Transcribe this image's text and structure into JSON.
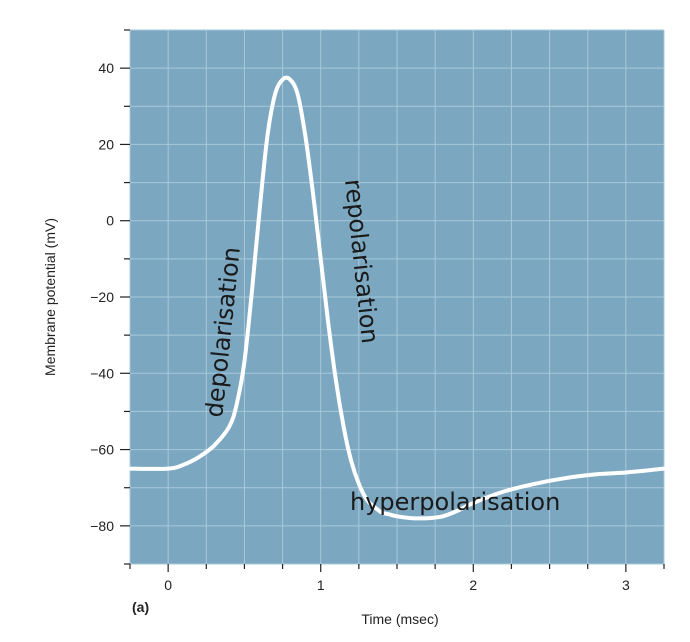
{
  "chart_data": {
    "type": "line",
    "title": "",
    "panel_label": "(a)",
    "xlabel": "Time (msec)",
    "ylabel": "Membrane potential (mV)",
    "xlim": [
      -0.25,
      3.25
    ],
    "ylim": [
      -90,
      50
    ],
    "xticks": [
      0,
      1,
      2,
      3
    ],
    "yticks": [
      40,
      20,
      0,
      -20,
      -40,
      -60,
      -80
    ],
    "grid": true,
    "colors": {
      "background": "#7ba7c1",
      "grid": "#a9c8da",
      "line": "#ffffff"
    },
    "series": [
      {
        "name": "",
        "x": [
          -0.25,
          0.0,
          0.1,
          0.2,
          0.3,
          0.4,
          0.45,
          0.5,
          0.55,
          0.6,
          0.65,
          0.7,
          0.75,
          0.8,
          0.85,
          0.9,
          0.95,
          1.0,
          1.05,
          1.1,
          1.15,
          1.2,
          1.25,
          1.3,
          1.35,
          1.4,
          1.45,
          1.5,
          1.6,
          1.7,
          1.8,
          1.9,
          2.0,
          2.2,
          2.4,
          2.6,
          2.8,
          3.0,
          3.25
        ],
        "y": [
          -65,
          -65,
          -64,
          -62,
          -59,
          -54,
          -48,
          -37,
          -18,
          3,
          22,
          33,
          37,
          37,
          33,
          22,
          7,
          -10,
          -27,
          -42,
          -54,
          -63,
          -69,
          -73,
          -75,
          -76.5,
          -77,
          -77.5,
          -78,
          -78,
          -77.5,
          -76,
          -74,
          -71,
          -69,
          -67.5,
          -66.5,
          -66,
          -65
        ]
      }
    ],
    "annotations": [
      {
        "text": "depolarisation"
      },
      {
        "text": "repolarisation"
      },
      {
        "text": "hyperpolarisation"
      }
    ]
  }
}
